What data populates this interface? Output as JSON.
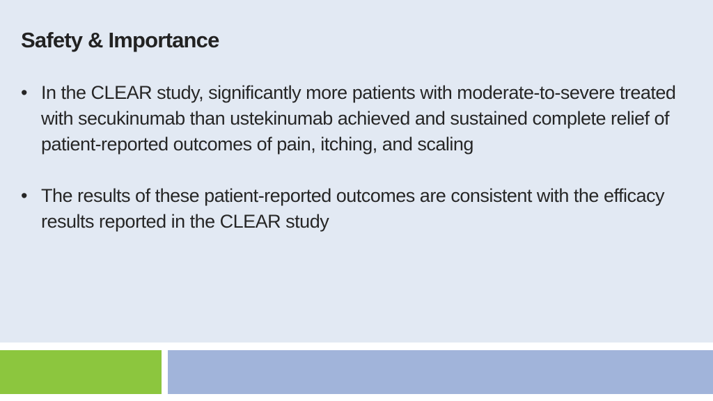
{
  "slide": {
    "title": "Safety & Importance",
    "bullets": [
      {
        "marker": "•",
        "text": "In the CLEAR study, significantly more patients with moderate-to-severe treated with secukinumab than ustekinumab achieved and sustained complete relief of patient-reported outcomes of pain, itching, and scaling"
      },
      {
        "marker": "•",
        "text": "The results of these patient-reported outcomes are consistent with the efficacy results reported in the CLEAR study"
      }
    ]
  },
  "colors": {
    "content_background": "#e2e9f3",
    "footer_green": "#8cc63e",
    "footer_blue": "#a1b4da",
    "text": "#262626"
  }
}
